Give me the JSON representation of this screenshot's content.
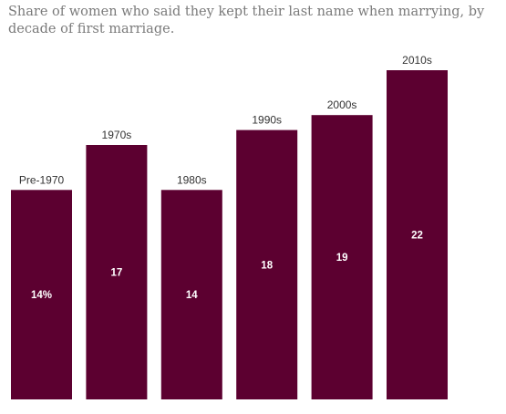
{
  "title": "Share of women who said they kept their last name when marrying, by decade of first marriage.",
  "chart_data": {
    "type": "bar",
    "categories": [
      "Pre-1970",
      "1970s",
      "1980s",
      "1990s",
      "2000s",
      "2010s"
    ],
    "values": [
      14,
      17,
      14,
      18,
      19,
      22
    ],
    "value_labels": [
      "14%",
      "17",
      "14",
      "18",
      "19",
      "22"
    ],
    "ylim": [
      0,
      22
    ],
    "grid": false,
    "bar_color": "#5c0030",
    "value_label_color": "#ffffff"
  }
}
